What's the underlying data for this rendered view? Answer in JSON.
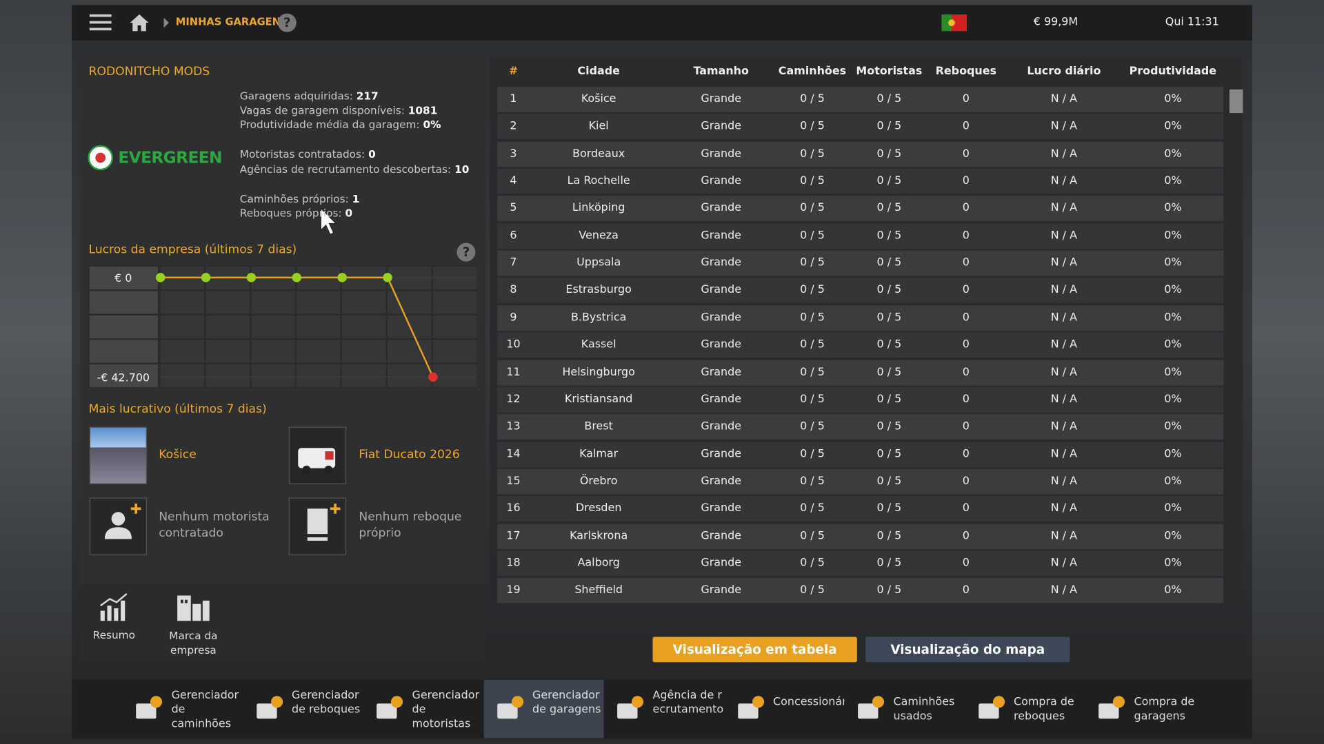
{
  "topbar": {
    "breadcrumb": "MINHAS GARAGENS",
    "money": "€ 99,9M",
    "clock": "Qui 11:31"
  },
  "company": {
    "name": "RODONITCHO MODS",
    "logo": "EVERGREEN",
    "stats": [
      {
        "label": "Garagens adquiridas:",
        "value": "217"
      },
      {
        "label": "Vagas de garagem disponíveis:",
        "value": "1081"
      },
      {
        "label": "Produtividade média da garagem:",
        "value": "0%"
      },
      {
        "label": "Motoristas contratados:",
        "value": "0"
      },
      {
        "label": "Agências de recrutamento descobertas:",
        "value": "10"
      },
      {
        "label": "Caminhões próprios:",
        "value": "1"
      },
      {
        "label": "Reboques próprios:",
        "value": "0"
      }
    ]
  },
  "profit_chart": {
    "type": "line",
    "title": "Lucros da empresa (últimos 7 dias)",
    "values": [
      0,
      0,
      0,
      0,
      0,
      0,
      -42700
    ],
    "ylim": [
      -42700,
      0
    ],
    "yticks": [
      {
        "value": 0,
        "label": "€ 0"
      },
      {
        "value": -42700,
        "label": "-€ 42.700"
      }
    ]
  },
  "most_profitable": {
    "title": "Mais lucrativo (últimos 7 dias)",
    "garage": "Košice",
    "truck": "Fiat Ducato 2026",
    "driver": "Nenhum motorista contratado",
    "trailer": "Nenhum reboque próprio"
  },
  "side_tabs": [
    "Resumo",
    "Marca da empresa"
  ],
  "table": {
    "columns": [
      "#",
      "Cidade",
      "Tamanho",
      "Caminhões",
      "Motoristas",
      "Reboques",
      "Lucro diário",
      "Produtividade"
    ],
    "rows": [
      [
        "1",
        "Košice",
        "Grande",
        "0 / 5",
        "0 / 5",
        "0",
        "N / A",
        "0%"
      ],
      [
        "2",
        "Kiel",
        "Grande",
        "0 / 5",
        "0 / 5",
        "0",
        "N / A",
        "0%"
      ],
      [
        "3",
        "Bordeaux",
        "Grande",
        "0 / 5",
        "0 / 5",
        "0",
        "N / A",
        "0%"
      ],
      [
        "4",
        "La Rochelle",
        "Grande",
        "0 / 5",
        "0 / 5",
        "0",
        "N / A",
        "0%"
      ],
      [
        "5",
        "Linköping",
        "Grande",
        "0 / 5",
        "0 / 5",
        "0",
        "N / A",
        "0%"
      ],
      [
        "6",
        "Veneza",
        "Grande",
        "0 / 5",
        "0 / 5",
        "0",
        "N / A",
        "0%"
      ],
      [
        "7",
        "Uppsala",
        "Grande",
        "0 / 5",
        "0 / 5",
        "0",
        "N / A",
        "0%"
      ],
      [
        "8",
        "Estrasburgo",
        "Grande",
        "0 / 5",
        "0 / 5",
        "0",
        "N / A",
        "0%"
      ],
      [
        "9",
        "B.Bystrica",
        "Grande",
        "0 / 5",
        "0 / 5",
        "0",
        "N / A",
        "0%"
      ],
      [
        "10",
        "Kassel",
        "Grande",
        "0 / 5",
        "0 / 5",
        "0",
        "N / A",
        "0%"
      ],
      [
        "11",
        "Helsingburgo",
        "Grande",
        "0 / 5",
        "0 / 5",
        "0",
        "N / A",
        "0%"
      ],
      [
        "12",
        "Kristiansand",
        "Grande",
        "0 / 5",
        "0 / 5",
        "0",
        "N / A",
        "0%"
      ],
      [
        "13",
        "Brest",
        "Grande",
        "0 / 5",
        "0 / 5",
        "0",
        "N / A",
        "0%"
      ],
      [
        "14",
        "Kalmar",
        "Grande",
        "0 / 5",
        "0 / 5",
        "0",
        "N / A",
        "0%"
      ],
      [
        "15",
        "Örebro",
        "Grande",
        "0 / 5",
        "0 / 5",
        "0",
        "N / A",
        "0%"
      ],
      [
        "16",
        "Dresden",
        "Grande",
        "0 / 5",
        "0 / 5",
        "0",
        "N / A",
        "0%"
      ],
      [
        "17",
        "Karlskrona",
        "Grande",
        "0 / 5",
        "0 / 5",
        "0",
        "N / A",
        "0%"
      ],
      [
        "18",
        "Aalborg",
        "Grande",
        "0 / 5",
        "0 / 5",
        "0",
        "N / A",
        "0%"
      ],
      [
        "19",
        "Sheffield",
        "Grande",
        "0 / 5",
        "0 / 5",
        "0",
        "N / A",
        "0%"
      ]
    ]
  },
  "view_buttons": [
    "Visualização em tabela",
    "Visualização do mapa"
  ],
  "bottom_nav": [
    "Gerenciador de caminhões",
    "Gerenciador de reboques",
    "Gerenciador de motoristas",
    "Gerenciador de garagens",
    "Agência de recrutamento",
    "Concessionárias",
    "Caminhões usados",
    "Compra de reboques",
    "Compra de garagens"
  ]
}
